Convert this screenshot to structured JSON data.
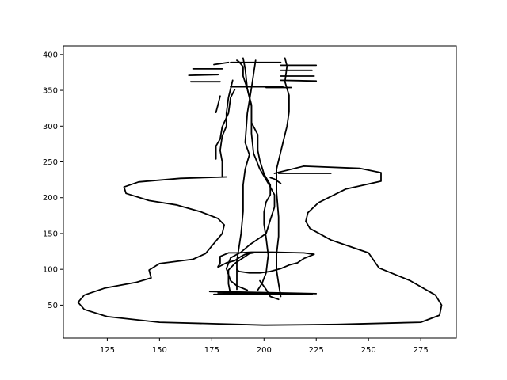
{
  "chart_data": {
    "type": "line",
    "title": "",
    "xlabel": "",
    "ylabel": "",
    "xlim": [
      104,
      292
    ],
    "ylim": [
      4,
      412
    ],
    "x_ticks": [
      125,
      150,
      175,
      200,
      225,
      250,
      275
    ],
    "y_ticks": [
      50,
      100,
      150,
      200,
      250,
      300,
      350,
      400
    ],
    "grid": false,
    "legend": false,
    "line_color": "#000000",
    "series": [
      {
        "x": [
          182,
          160,
          140,
          133,
          134,
          145,
          158,
          170,
          178,
          181,
          180,
          176,
          172,
          166,
          150,
          145,
          146,
          139,
          124,
          114,
          111,
          114,
          125,
          150,
          200,
          235,
          275,
          284,
          285,
          282,
          270,
          255,
          250,
          232,
          222,
          220,
          221,
          226,
          239,
          256,
          256,
          246,
          219,
          205
        ],
        "y": [
          229,
          227,
          222,
          215,
          206,
          196,
          190,
          180,
          171,
          162,
          150,
          136,
          122,
          114,
          108,
          99,
          88,
          82,
          74,
          64,
          54,
          44,
          34,
          26,
          22,
          23,
          26,
          36,
          50,
          64,
          84,
          102,
          123,
          141,
          157,
          167,
          179,
          193,
          212,
          223,
          235,
          241,
          244,
          234
        ]
      },
      {
        "x": [
          207,
          232
        ],
        "y": [
          234,
          234
        ]
      },
      {
        "x": [
          184,
          183,
          183,
          186,
          188,
          193
        ],
        "y": [
          65,
          80,
          99,
          108,
          112,
          122
        ]
      },
      {
        "x": [
          174,
          225
        ],
        "y": [
          69,
          66
        ]
      },
      {
        "x": [
          176,
          223
        ],
        "y": [
          65,
          65
        ]
      },
      {
        "x": [
          178,
          220
        ],
        "y": [
          67,
          65
        ]
      },
      {
        "x": [
          192,
          187,
          184,
          182,
          184,
          189,
          193,
          201,
          203,
          205,
          205,
          202,
          198,
          195,
          194,
          194,
          192,
          191,
          190
        ],
        "y": [
          71,
          77,
          84,
          101,
          116,
          124,
          134,
          150,
          169,
          187,
          204,
          220,
          240,
          262,
          290,
          328,
          352,
          380,
          395
        ]
      },
      {
        "x": [
          187,
          187,
          188,
          189,
          190,
          190,
          191,
          193,
          191,
          192,
          194,
          196
        ],
        "y": [
          72,
          112,
          130,
          150,
          181,
          218,
          240,
          260,
          277,
          318,
          353,
          392
        ]
      },
      {
        "x": [
          187,
          188,
          193,
          198,
          203,
          208,
          212,
          216,
          219,
          224,
          219,
          204,
          194,
          188,
          183,
          179,
          179,
          178
        ],
        "y": [
          100,
          97,
          95,
          95,
          97,
          101,
          106,
          109,
          115,
          121,
          123,
          124,
          124,
          123,
          123,
          118,
          108,
          104
        ]
      },
      {
        "x": [
          178,
          182,
          186,
          189,
          191,
          193,
          195
        ],
        "y": [
          103,
          109,
          112,
          118,
          121,
          122,
          123
        ]
      },
      {
        "x": [
          198,
          201,
          203,
          207
        ],
        "y": [
          84,
          72,
          62,
          58
        ]
      },
      {
        "x": [
          197,
          199,
          201,
          202,
          201,
          200,
          200,
          201,
          203,
          203,
          200,
          198,
          197,
          197,
          194,
          194,
          192,
          190,
          190,
          188,
          187
        ],
        "y": [
          71,
          80,
          95,
          120,
          144,
          163,
          180,
          194,
          204,
          218,
          233,
          252,
          266,
          288,
          305,
          330,
          352,
          370,
          383,
          390,
          392
        ]
      },
      {
        "x": [
          208,
          207,
          206,
          206,
          207,
          207,
          206,
          206,
          209,
          211,
          212,
          212,
          210,
          211,
          210
        ],
        "y": [
          62,
          80,
          99,
          121,
          146,
          173,
          208,
          240,
          276,
          300,
          320,
          343,
          362,
          384,
          395
        ]
      },
      {
        "x": [
          180,
          180,
          179,
          180,
          182,
          182,
          183,
          185
        ],
        "y": [
          229,
          250,
          266,
          286,
          300,
          318,
          340,
          364
        ]
      },
      {
        "x": [
          177,
          177,
          179,
          180,
          183,
          184,
          186
        ],
        "y": [
          254,
          272,
          282,
          299,
          318,
          340,
          351
        ]
      },
      {
        "x": [
          177,
          178,
          179
        ],
        "y": [
          319,
          330,
          342
        ]
      },
      {
        "x": [
          176,
          183
        ],
        "y": [
          386,
          389
        ]
      },
      {
        "x": [
          166,
          180
        ],
        "y": [
          380,
          380
        ]
      },
      {
        "x": [
          164,
          178
        ],
        "y": [
          371,
          372
        ]
      },
      {
        "x": [
          165,
          179
        ],
        "y": [
          362,
          362
        ]
      },
      {
        "x": [
          184,
          208
        ],
        "y": [
          389,
          389
        ]
      },
      {
        "x": [
          208,
          225
        ],
        "y": [
          385,
          385
        ]
      },
      {
        "x": [
          208,
          223
        ],
        "y": [
          378,
          378
        ]
      },
      {
        "x": [
          208,
          224
        ],
        "y": [
          370,
          370
        ]
      },
      {
        "x": [
          208,
          225
        ],
        "y": [
          364,
          363
        ]
      },
      {
        "x": [
          184,
          209
        ],
        "y": [
          355,
          355
        ]
      },
      {
        "x": [
          213,
          201
        ],
        "y": [
          354,
          354
        ]
      },
      {
        "x": [
          203,
          205,
          208
        ],
        "y": [
          228,
          226,
          220
        ]
      }
    ]
  }
}
